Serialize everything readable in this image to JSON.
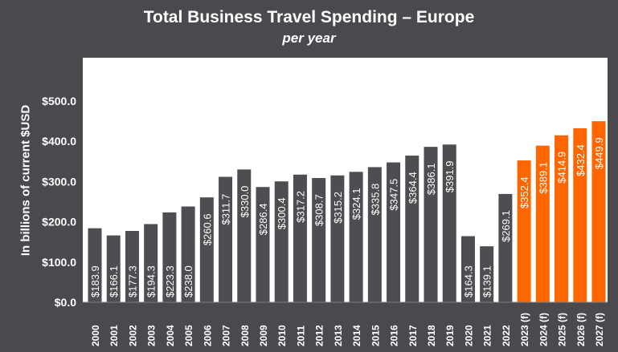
{
  "chart_data": {
    "type": "bar",
    "title": "Total Business Travel Spending – Europe",
    "subtitle": "per year",
    "xlabel": "",
    "ylabel": "In billions of current $USD",
    "ylim": [
      0,
      500
    ],
    "grid": false,
    "legend": "none",
    "y_ticks": [
      "$0.0",
      "$100.0",
      "$200.0",
      "$300.0",
      "$400.0",
      "$500.0"
    ],
    "categories": [
      "2000",
      "2001",
      "2002",
      "2003",
      "2004",
      "2005",
      "2006",
      "2007",
      "2008",
      "2009",
      "2010",
      "2011",
      "2012",
      "2013",
      "2014",
      "2015",
      "2016",
      "2017",
      "2018",
      "2019",
      "2020",
      "2021",
      "2022",
      "2023 (f)",
      "2024 (f)",
      "2025 (f)",
      "2026 (f)",
      "2027 (f)"
    ],
    "values": [
      183.9,
      166.1,
      177.3,
      194.3,
      223.3,
      238.0,
      260.6,
      311.7,
      330.0,
      286.4,
      300.4,
      317.2,
      308.7,
      315.2,
      324.1,
      335.8,
      347.5,
      364.4,
      386.1,
      391.9,
      164.3,
      139.1,
      269.1,
      352.4,
      389.1,
      414.9,
      432.4,
      449.9
    ],
    "data_labels": [
      "$183.9",
      "$166.1",
      "$177.3",
      "$194.3",
      "$223.3",
      "$238.0",
      "$260.6",
      "$311.7",
      "$330.0",
      "$286.4",
      "$300.4",
      "$317.2",
      "$308.7",
      "$315.2",
      "$324.1",
      "$335.8",
      "$347.5",
      "$364.4",
      "$386.1",
      "$391.9",
      "$164.3",
      "$139.1",
      "$269.1",
      "$352.4",
      "$389.1",
      "$414.9",
      "$432.4",
      "$449.9"
    ],
    "colors": {
      "actual": "#4d4d52",
      "forecast": "#ff6600",
      "background": "#4a4a4e",
      "plot_area": "#ffffff",
      "text": "#ffffff"
    },
    "forecast_from_index": 23
  }
}
